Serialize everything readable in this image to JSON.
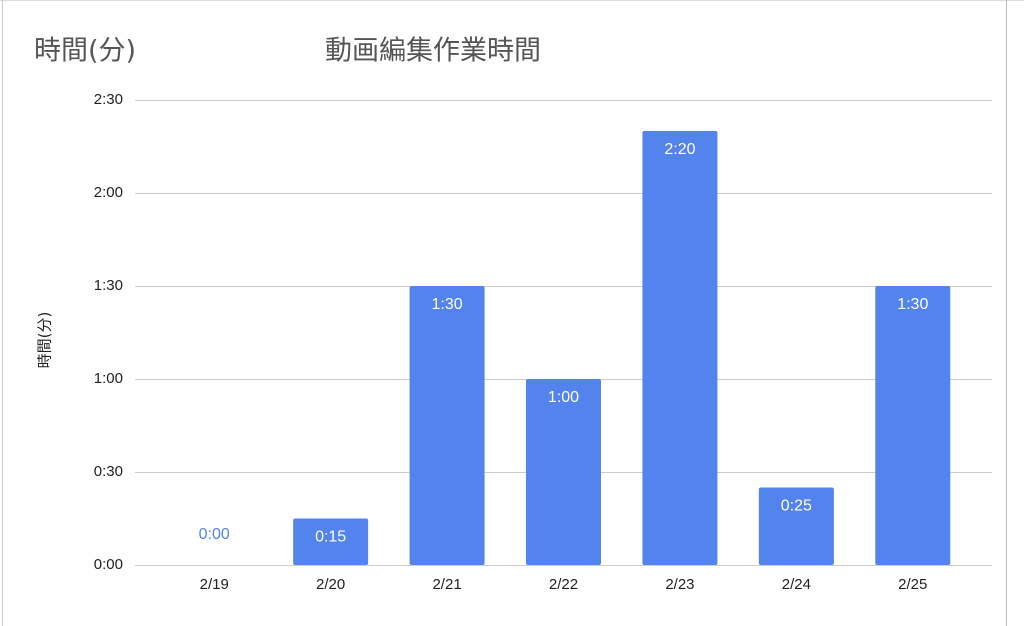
{
  "chart_data": {
    "type": "bar",
    "title": "動画編集作業時間",
    "subtitle": "時間(分)",
    "ylabel": "時間(分)",
    "categories": [
      "2/19",
      "2/20",
      "2/21",
      "2/22",
      "2/23",
      "2/24",
      "2/25"
    ],
    "values": [
      0,
      15,
      90,
      60,
      140,
      25,
      90
    ],
    "value_labels": [
      "0:00",
      "0:15",
      "1:30",
      "1:00",
      "2:20",
      "0:25",
      "1:30"
    ],
    "color": "#5383ec",
    "ylim": [
      0,
      150
    ],
    "yticks": [
      {
        "value": 0,
        "label": "0:00"
      },
      {
        "value": 30,
        "label": "0:30"
      },
      {
        "value": 60,
        "label": "1:00"
      },
      {
        "value": 90,
        "label": "1:30"
      },
      {
        "value": 120,
        "label": "2:00"
      },
      {
        "value": 150,
        "label": "2:30"
      }
    ],
    "grid": true
  }
}
